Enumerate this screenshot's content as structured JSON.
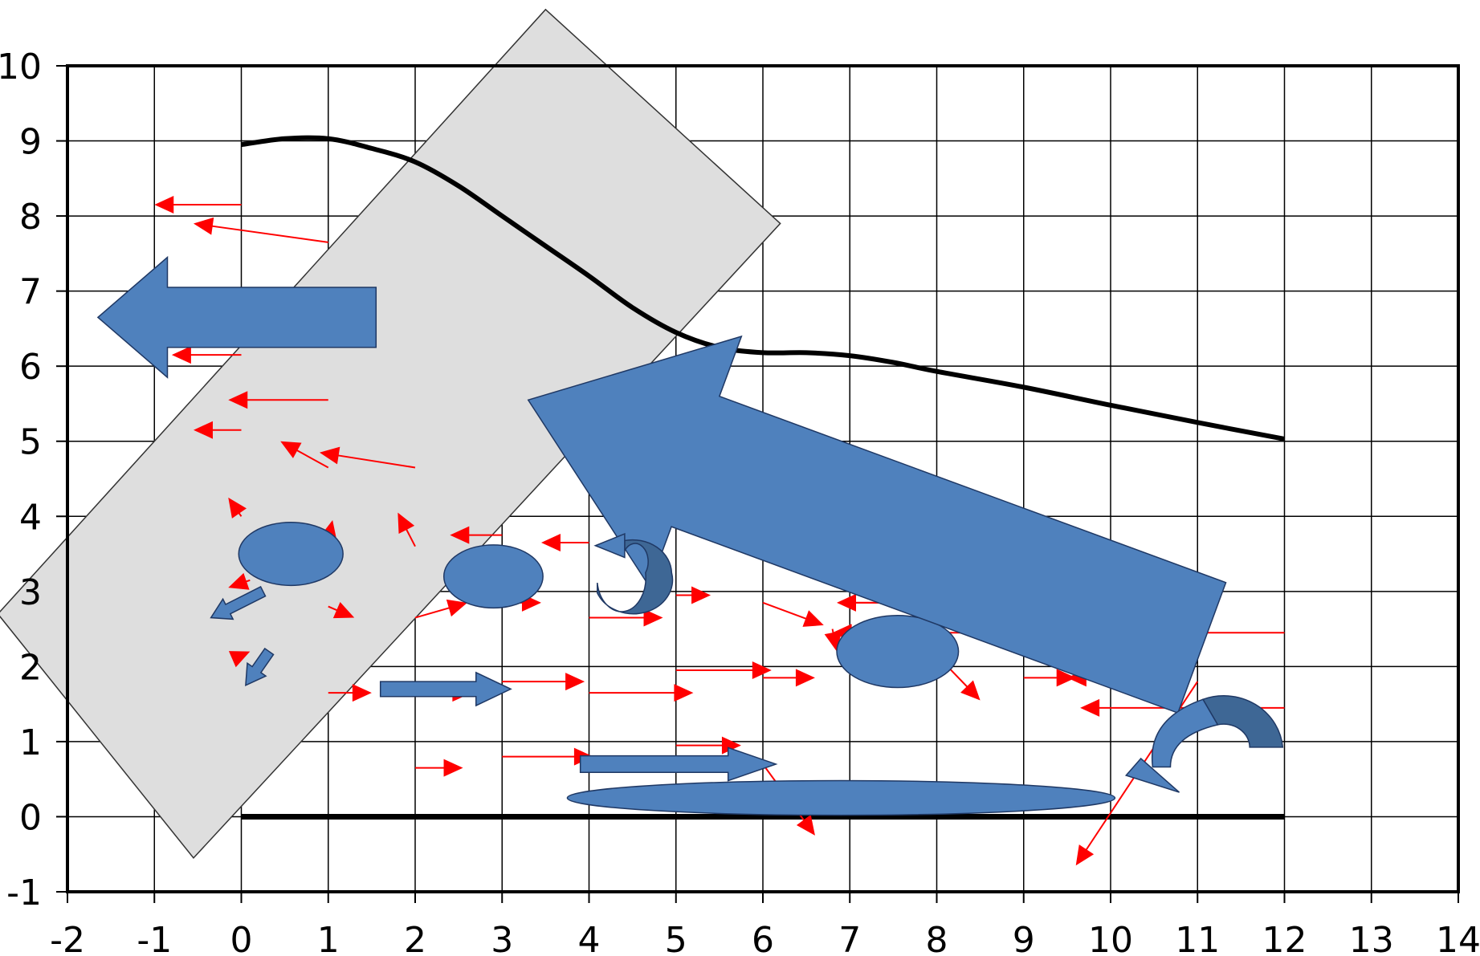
{
  "axes": {
    "x_ticks": [
      "-2",
      "-1",
      "0",
      "1",
      "2",
      "3",
      "4",
      "5",
      "6",
      "7",
      "8",
      "9",
      "10",
      "11",
      "12",
      "13",
      "14"
    ],
    "y_ticks": [
      "10",
      "9",
      "8",
      "7",
      "6",
      "5",
      "4",
      "3",
      "2",
      "1",
      "0",
      "-1"
    ],
    "xlim": [
      -2,
      14
    ],
    "ylim": [
      -1,
      10
    ],
    "grid": true
  },
  "colors": {
    "arrow": "#ff0000",
    "shape_fill": "#4f81bd",
    "shape_stroke": "#1f3864",
    "shape_dark": "#3e6795",
    "rect_fill": "#dedede",
    "curve": "#000000"
  },
  "curve": [
    [
      0,
      8.95
    ],
    [
      0.5,
      9.03
    ],
    [
      1,
      9.03
    ],
    [
      1.5,
      8.9
    ],
    [
      2,
      8.72
    ],
    [
      2.5,
      8.4
    ],
    [
      3,
      8.0
    ],
    [
      3.5,
      7.6
    ],
    [
      4,
      7.2
    ],
    [
      4.5,
      6.78
    ],
    [
      5,
      6.45
    ],
    [
      5.5,
      6.25
    ],
    [
      6,
      6.18
    ],
    [
      6.5,
      6.18
    ],
    [
      7,
      6.14
    ],
    [
      7.5,
      6.05
    ],
    [
      8,
      5.93
    ],
    [
      9,
      5.72
    ],
    [
      10,
      5.48
    ],
    [
      11,
      5.25
    ],
    [
      12,
      5.03
    ]
  ],
  "baseline": [
    [
      0,
      0
    ],
    [
      12,
      0
    ]
  ],
  "tilted_rectangle": [
    [
      3.5,
      10.75
    ],
    [
      6.2,
      7.9
    ],
    [
      -0.55,
      -0.55
    ],
    [
      -2.8,
      2.7
    ]
  ],
  "red_arrows": [
    [
      0,
      8.15,
      -1,
      8.15
    ],
    [
      1,
      7.65,
      -0.55,
      7.9
    ],
    [
      0,
      6.15,
      -0.8,
      6.15
    ],
    [
      1,
      5.55,
      -0.15,
      5.55
    ],
    [
      0,
      5.15,
      -0.55,
      5.15
    ],
    [
      2,
      4.65,
      0.9,
      4.85
    ],
    [
      1,
      4.65,
      0.45,
      5.0
    ],
    [
      0,
      4.0,
      -0.15,
      4.25
    ],
    [
      1,
      3.7,
      1.05,
      3.95
    ],
    [
      2,
      3.6,
      1.8,
      4.05
    ],
    [
      3,
      3.75,
      2.4,
      3.75
    ],
    [
      4,
      3.65,
      3.45,
      3.65
    ],
    [
      0.1,
      3.15,
      -0.15,
      3.05
    ],
    [
      1,
      2.8,
      1.3,
      2.65
    ],
    [
      2,
      2.65,
      2.6,
      2.85
    ],
    [
      3,
      2.85,
      3.45,
      2.85
    ],
    [
      5,
      2.95,
      5.4,
      2.95
    ],
    [
      4,
      2.65,
      4.85,
      2.65
    ],
    [
      6,
      2.85,
      6.7,
      2.55
    ],
    [
      8,
      2.85,
      6.85,
      2.85
    ],
    [
      7,
      2.85,
      7.85,
      2.85
    ],
    [
      9,
      2.85,
      7.8,
      2.55
    ],
    [
      11,
      2.85,
      8.3,
      2.55
    ],
    [
      12,
      2.45,
      6.8,
      2.45
    ],
    [
      0,
      2.15,
      0.1,
      2.2
    ],
    [
      5,
      1.95,
      6.1,
      1.95
    ],
    [
      6,
      1.85,
      6.6,
      1.85
    ],
    [
      12,
      1.45,
      9.65,
      1.45
    ],
    [
      9,
      1.85,
      9.6,
      1.85
    ],
    [
      10,
      1.85,
      9.5,
      1.85
    ],
    [
      8,
      2.15,
      8.5,
      1.55
    ],
    [
      1,
      1.65,
      1.5,
      1.65
    ],
    [
      2,
      1.65,
      2.65,
      1.65
    ],
    [
      3,
      1.8,
      3.95,
      1.8
    ],
    [
      4,
      1.65,
      5.2,
      1.65
    ],
    [
      5,
      0.95,
      5.75,
      0.95
    ],
    [
      2,
      0.65,
      2.55,
      0.65
    ],
    [
      3,
      0.8,
      4.05,
      0.8
    ],
    [
      6,
      0.7,
      6.6,
      -0.25
    ],
    [
      11,
      1.8,
      9.6,
      -0.65
    ],
    [
      6.8,
      2.5,
      6.85,
      2.2
    ]
  ],
  "ellipses": [
    [
      0.57,
      3.5,
      0.6,
      0.42
    ],
    [
      2.9,
      3.2,
      0.57,
      0.42
    ],
    [
      7.55,
      2.2,
      0.7,
      0.48
    ],
    [
      6.9,
      0.25,
      3.15,
      0.23
    ]
  ],
  "block_arrows": [
    {
      "tail": [
        1.55,
        6.65
      ],
      "head": [
        -1.65,
        6.65
      ],
      "shaft": 0.8,
      "headw": 1.6,
      "headl": 0.8
    },
    {
      "tail": [
        11.05,
        2.25
      ],
      "head": [
        3.3,
        5.55
      ],
      "shaft": 1.85,
      "headw": 3.55,
      "headl": 2.05
    },
    {
      "tail": [
        1.6,
        1.7
      ],
      "head": [
        3.1,
        1.7
      ],
      "shaft": 0.2,
      "headw": 0.44,
      "headl": 0.4
    },
    {
      "tail": [
        3.9,
        0.7
      ],
      "head": [
        6.15,
        0.7
      ],
      "shaft": 0.22,
      "headw": 0.44,
      "headl": 0.55
    },
    {
      "tail": [
        0.25,
        3.0
      ],
      "head": [
        -0.35,
        2.65
      ],
      "shaft": 0.14,
      "headw": 0.3,
      "headl": 0.22
    },
    {
      "tail": [
        0.32,
        2.2
      ],
      "head": [
        0.05,
        1.75
      ],
      "shaft": 0.14,
      "headw": 0.3,
      "headl": 0.22
    }
  ],
  "curved_arrows": [
    {
      "cx": 4.5,
      "cy": 3.25,
      "rx": 0.45,
      "ry": 0.45,
      "thick": 0.3
    },
    {
      "cx": 11.3,
      "cy": 1.0,
      "rx": 0.68,
      "ry": 0.75,
      "thick": 0.38
    }
  ]
}
